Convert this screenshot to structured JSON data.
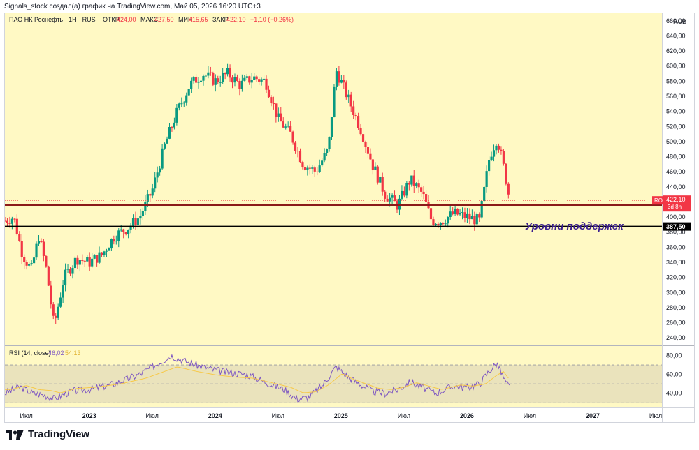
{
  "caption": "Signals_stock создал(а) график на TradingView.com, Май 05, 2026 16:20 UTC+3",
  "header": {
    "symbol": "ПАО НК Роснефть · 1Н · RUS",
    "o_label": "ОТКР",
    "o_value": "424,00",
    "h_label": "МАКС",
    "h_value": "427,50",
    "l_label": "МИН",
    "l_value": "415,65",
    "c_label": "ЗАКР",
    "c_value": "422,10",
    "change": "−1,10 (−0,26%)",
    "currency": "RUB"
  },
  "price_badge": {
    "ticker": "ROSN",
    "price": "422,10",
    "countdown": "3d 8h"
  },
  "levels": [
    {
      "label": "415,80",
      "value": 415.8,
      "color": "#8b1a1a",
      "label_bg": "#8b1a1a"
    },
    {
      "label": "387,50",
      "value": 387.5,
      "color": "#000000",
      "label_bg": "#000000"
    }
  ],
  "annotation": "Уровни поддержек",
  "rsi_legend": {
    "title": "RSI (14, close)",
    "rsi": "46,02",
    "ma": "54,13"
  },
  "footer": {
    "brand": "TradingView"
  },
  "colors": {
    "up": "#089981",
    "down": "#f23645",
    "bg": "#fff9c4",
    "rsi_line": "#7e57c2",
    "rsi_ma": "#f7c948",
    "rsi_band": "#d8d1b6"
  },
  "chart_data": {
    "type": "candlestick",
    "title": "ПАО НК Роснефть · 1Н · RUS",
    "ylim": [
      230,
      670
    ],
    "yticks": [
      "660,00",
      "640,00",
      "620,00",
      "600,00",
      "580,00",
      "560,00",
      "540,00",
      "520,00",
      "500,00",
      "480,00",
      "460,00",
      "440,00",
      "420,00",
      "400,00",
      "380,00",
      "360,00",
      "340,00",
      "320,00",
      "300,00",
      "280,00",
      "260,00",
      "240,00"
    ],
    "ytick_values": [
      660,
      640,
      620,
      600,
      580,
      560,
      540,
      520,
      500,
      480,
      460,
      440,
      420,
      400,
      380,
      360,
      340,
      320,
      300,
      280,
      260,
      240
    ],
    "xlabels": [
      {
        "t": "Июл",
        "year": 2022.5
      },
      {
        "t": "2023",
        "year": 2023.0
      },
      {
        "t": "Июл",
        "year": 2023.5
      },
      {
        "t": "2024",
        "year": 2024.0
      },
      {
        "t": "Июл",
        "year": 2024.5
      },
      {
        "t": "2025",
        "year": 2025.0
      },
      {
        "t": "Июл",
        "year": 2025.5
      },
      {
        "t": "2026",
        "year": 2026.0
      },
      {
        "t": "Июл",
        "year": 2026.5
      },
      {
        "t": "2027",
        "year": 2027.0
      },
      {
        "t": "Июл",
        "year": 2027.5
      }
    ],
    "x_range": [
      2022.33,
      2027.55
    ],
    "price_path": [
      [
        2022.33,
        395
      ],
      [
        2022.4,
        400
      ],
      [
        2022.47,
        350
      ],
      [
        2022.54,
        330
      ],
      [
        2022.6,
        375
      ],
      [
        2022.66,
        330
      ],
      [
        2022.72,
        255
      ],
      [
        2022.8,
        320
      ],
      [
        2022.9,
        345
      ],
      [
        2023.0,
        340
      ],
      [
        2023.1,
        350
      ],
      [
        2023.2,
        375
      ],
      [
        2023.3,
        385
      ],
      [
        2023.4,
        400
      ],
      [
        2023.5,
        435
      ],
      [
        2023.6,
        495
      ],
      [
        2023.7,
        540
      ],
      [
        2023.8,
        575
      ],
      [
        2023.9,
        590
      ],
      [
        2024.0,
        580
      ],
      [
        2024.1,
        590
      ],
      [
        2024.2,
        575
      ],
      [
        2024.3,
        585
      ],
      [
        2024.4,
        580
      ],
      [
        2024.5,
        530
      ],
      [
        2024.6,
        510
      ],
      [
        2024.7,
        470
      ],
      [
        2024.8,
        460
      ],
      [
        2024.9,
        490
      ],
      [
        2024.96,
        595
      ],
      [
        2025.05,
        560
      ],
      [
        2025.15,
        520
      ],
      [
        2025.25,
        470
      ],
      [
        2025.35,
        430
      ],
      [
        2025.45,
        415
      ],
      [
        2025.55,
        450
      ],
      [
        2025.65,
        430
      ],
      [
        2025.72,
        395
      ],
      [
        2025.8,
        395
      ],
      [
        2025.9,
        405
      ],
      [
        2026.0,
        400
      ],
      [
        2026.1,
        395
      ],
      [
        2026.18,
        480
      ],
      [
        2026.24,
        505
      ],
      [
        2026.3,
        460
      ],
      [
        2026.34,
        422
      ]
    ],
    "rsi": {
      "ylim": [
        25,
        90
      ],
      "yticks": [
        "80,00",
        "60,00",
        "40,00"
      ],
      "ytick_values": [
        80,
        60,
        40
      ],
      "upper_band": 70,
      "mid": 50,
      "lower_band": 30,
      "path": [
        [
          2022.33,
          40
        ],
        [
          2022.45,
          47
        ],
        [
          2022.55,
          40
        ],
        [
          2022.65,
          38
        ],
        [
          2022.72,
          34
        ],
        [
          2022.85,
          42
        ],
        [
          2023.0,
          44
        ],
        [
          2023.2,
          50
        ],
        [
          2023.4,
          60
        ],
        [
          2023.55,
          72
        ],
        [
          2023.65,
          80
        ],
        [
          2023.8,
          72
        ],
        [
          2023.95,
          66
        ],
        [
          2024.1,
          62
        ],
        [
          2024.25,
          60
        ],
        [
          2024.4,
          52
        ],
        [
          2024.55,
          44
        ],
        [
          2024.65,
          34
        ],
        [
          2024.75,
          36
        ],
        [
          2024.85,
          48
        ],
        [
          2024.96,
          68
        ],
        [
          2025.05,
          58
        ],
        [
          2025.15,
          50
        ],
        [
          2025.25,
          42
        ],
        [
          2025.35,
          40
        ],
        [
          2025.45,
          44
        ],
        [
          2025.55,
          52
        ],
        [
          2025.65,
          46
        ],
        [
          2025.75,
          40
        ],
        [
          2025.9,
          48
        ],
        [
          2026.0,
          46
        ],
        [
          2026.1,
          50
        ],
        [
          2026.18,
          64
        ],
        [
          2026.24,
          72
        ],
        [
          2026.3,
          54
        ],
        [
          2026.34,
          46
        ]
      ]
    }
  }
}
